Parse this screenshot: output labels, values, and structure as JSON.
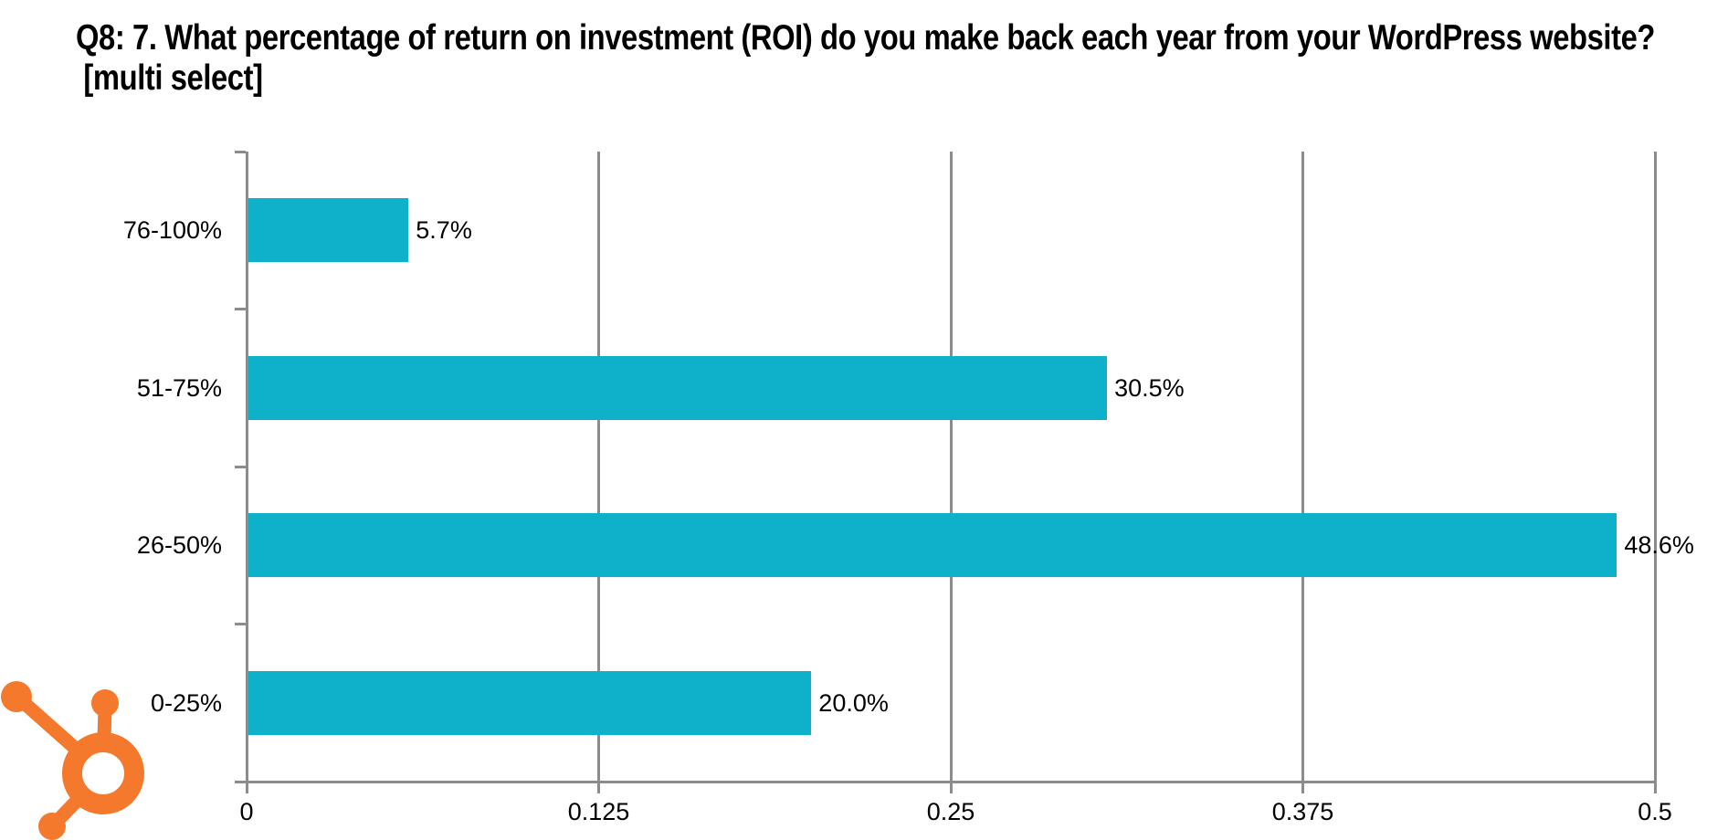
{
  "title": {
    "line1": "Q8: 7. What percentage of return on investment (ROI) do you make back each year from your WordPress website?",
    "line2": "[multi select]"
  },
  "chart_data": {
    "type": "bar",
    "orientation": "horizontal",
    "title": "Q8: 7. What percentage of return on investment (ROI) do you make back each year from your WordPress website? [multi select]",
    "categories": [
      "76-100%",
      "51-75%",
      "26-50%",
      "0-25%"
    ],
    "values": [
      5.7,
      30.5,
      48.6,
      20.0
    ],
    "value_labels": [
      "5.7%",
      "30.5%",
      "48.6%",
      "20.0%"
    ],
    "xlim": [
      0,
      0.5
    ],
    "x_ticks": [
      "0",
      "0.125",
      "0.25",
      "0.375",
      "0.5"
    ],
    "x_tick_values": [
      0,
      0.125,
      0.25,
      0.375,
      0.5
    ],
    "grid": true,
    "legend": "none",
    "bar_color": "#0FB0C9",
    "axis_color": "#8C8C8C",
    "text_color": "#000000"
  },
  "logo": {
    "name": "hubspot-sprocket",
    "color": "#F4792D"
  }
}
